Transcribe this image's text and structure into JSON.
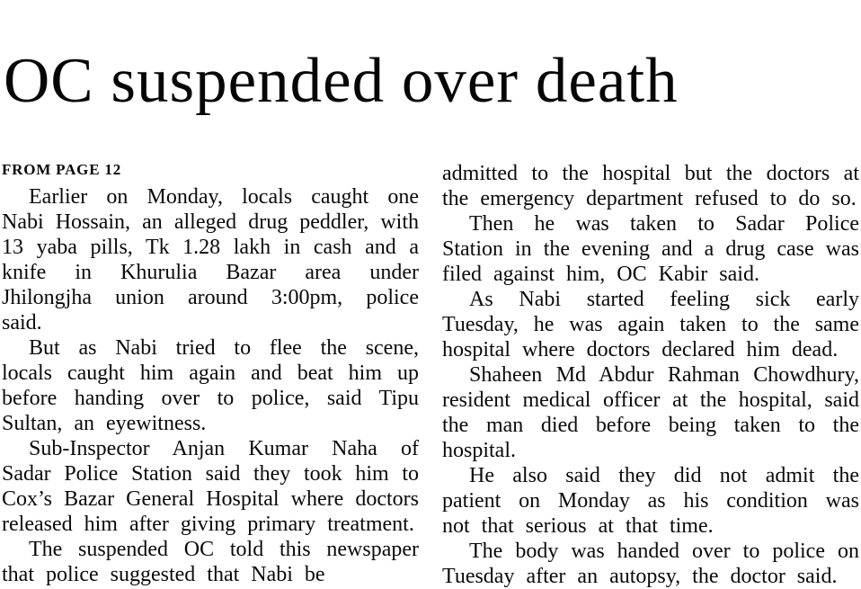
{
  "article": {
    "headline": "OC suspended over death",
    "kicker": "FROM PAGE 12",
    "columns": {
      "left": [
        "Earlier on Monday, locals caught one Nabi Hossain, an alleged drug peddler, with 13 yaba pills, Tk 1.28 lakh in cash and a knife in Khurulia Bazar area under Jhilongjha union around 3:00pm, police said.",
        "But as Nabi tried to flee the scene, locals caught him again and beat him up before handing over to police, said Tipu Sultan, an eyewitness.",
        "Sub-Inspector Anjan Kumar Naha of Sadar Police Station said they took him to Cox’s Bazar General Hospital where doctors released him after giving primary treatment.",
        "The suspended OC told this newspaper that police suggested that Nabi be"
      ],
      "right": [
        "admitted to the hospital but the doctors at the emergency department refused to do so.",
        "Then he was taken to Sadar Police Station in the evening and a drug case was filed against him, OC Kabir said.",
        "As Nabi started feeling sick early Tuesday, he was again taken to the same hospital where doctors declared him dead.",
        "Shaheen Md Abdur Rahman Chowdhury, resident medical officer at the hospital, said the man died before being taken to the hospital.",
        "He also said they did not admit the patient on Monday as his condition was not that serious at that time.",
        "The body was handed over to police on Tuesday after an autopsy, the doctor said."
      ]
    }
  }
}
